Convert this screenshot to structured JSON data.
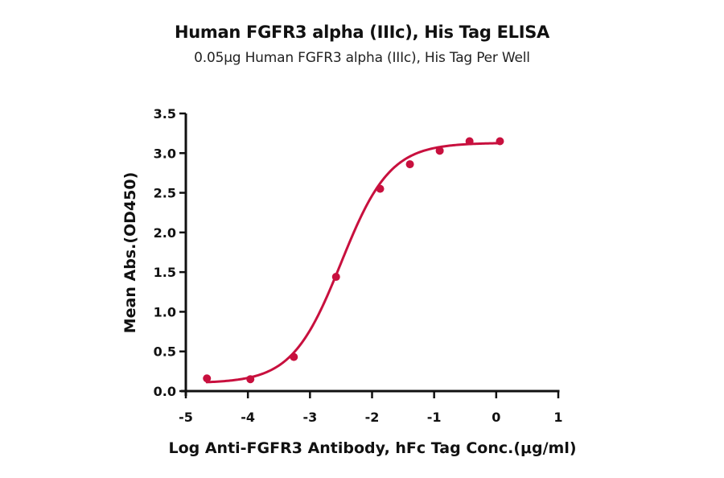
{
  "chart_data": {
    "type": "scatter",
    "title": "Human FGFR3 alpha (IIIc), His Tag ELISA",
    "subtitle": "0.05μg Human FGFR3 alpha (IIIc), His Tag Per Well",
    "xlabel": "Log  Anti-FGFR3 Antibody, hFc Tag Conc.(μg/ml)",
    "ylabel": "Mean Abs.(OD450)",
    "xlim": [
      -5,
      1
    ],
    "ylim": [
      0,
      3.5
    ],
    "xticks": [
      -5,
      -4,
      -3,
      -2,
      -1,
      0,
      1
    ],
    "xtick_labels": [
      "-5",
      "-4",
      "-3",
      "-2",
      "-1",
      "0",
      "1"
    ],
    "yticks": [
      0,
      0.5,
      1,
      1.5,
      2,
      2.5,
      3,
      3.5
    ],
    "ytick_labels": [
      "0.0",
      "0.5",
      "1.0",
      "1.5",
      "2.0",
      "2.5",
      "3.0",
      "3.5"
    ],
    "grid": false,
    "legend": null,
    "series": [
      {
        "name": "Mean Abs.(OD450)",
        "color": "#C8103E",
        "x": [
          -4.66,
          -3.96,
          -3.26,
          -2.58,
          -1.87,
          -1.39,
          -0.91,
          -0.43,
          0.06
        ],
        "y": [
          0.16,
          0.15,
          0.43,
          1.44,
          2.55,
          2.86,
          3.03,
          3.15,
          3.15
        ]
      }
    ],
    "fit": {
      "model": "4PL",
      "bottom": 0.1,
      "top": 3.13,
      "log_ec50": -2.5,
      "hill": 1.1,
      "x_range": [
        -4.66,
        0.06
      ],
      "color": "#C8103E"
    }
  }
}
